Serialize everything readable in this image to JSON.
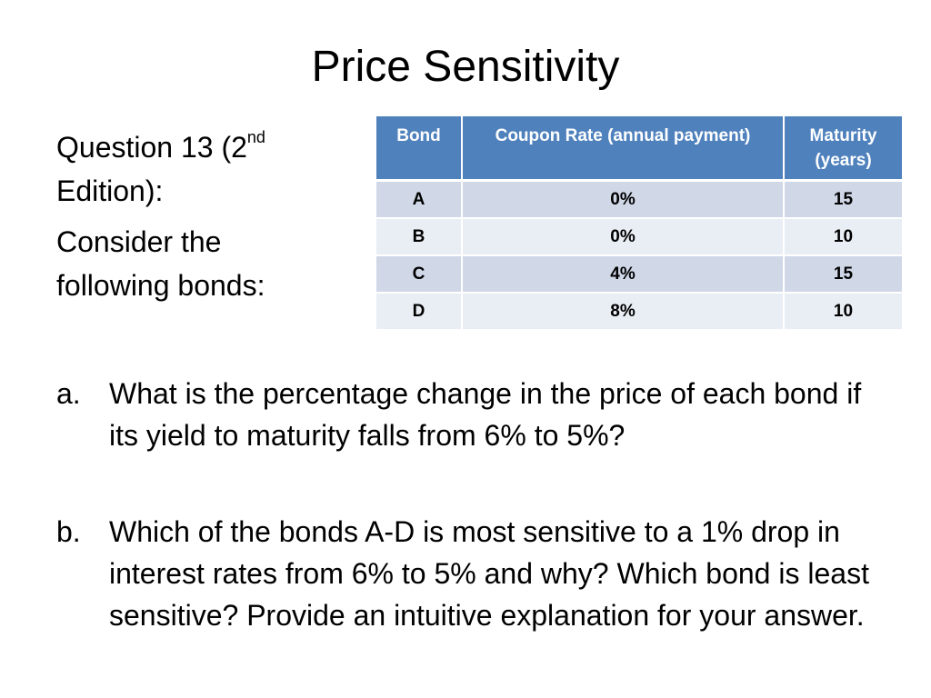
{
  "title": "Price Sensitivity",
  "intro": {
    "question_prefix": "Question 13 (2",
    "question_sup": "nd",
    "question_suffix": "Edition):",
    "consider_line1": "Consider the",
    "consider_line2": "following bonds:"
  },
  "table": {
    "headers": [
      "Bond",
      "Coupon Rate (annual payment)",
      "Maturity (years)"
    ],
    "rows": [
      [
        "A",
        "0%",
        "15"
      ],
      [
        "B",
        "0%",
        "10"
      ],
      [
        "C",
        "4%",
        "15"
      ],
      [
        "D",
        "8%",
        "10"
      ]
    ]
  },
  "questions": [
    {
      "marker": "a.",
      "text": "What is the percentage change in the price of each bond if its yield to maturity falls from 6% to 5%?"
    },
    {
      "marker": "b.",
      "text": "Which of the bonds A-D is most sensitive to a 1% drop in interest rates from 6% to 5% and why? Which bond is least sensitive? Provide an intuitive explanation for your answer."
    }
  ],
  "colors": {
    "header_bg": "#4f81bd",
    "row_odd_bg": "#d0d8e8",
    "row_even_bg": "#e9edf4"
  }
}
